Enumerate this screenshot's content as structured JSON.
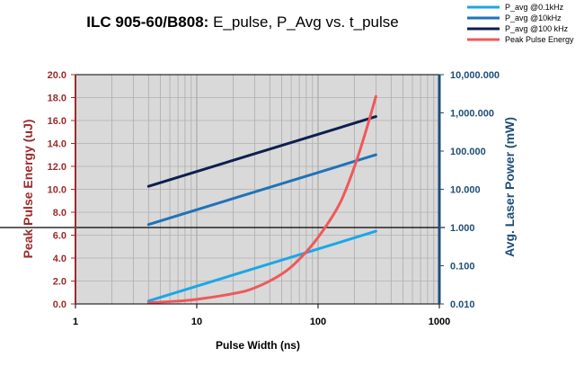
{
  "chart_data": {
    "type": "line",
    "title_bold": "ILC 905-60/B808:",
    "title_rest": " E_pulse, P_Avg vs. t_pulse",
    "xlabel": "Pulse Width (ns)",
    "ylabel_left": "Peak Pulse Energy (uJ)",
    "ylabel_right": "Avg. Laser Power (mW)",
    "x_scale": "log",
    "xlim": [
      1,
      1000
    ],
    "x_ticks": [
      "1",
      "10",
      "100",
      "1000"
    ],
    "ylim_left": [
      0,
      20
    ],
    "y_ticks_left": [
      "0.0",
      "2.0",
      "4.0",
      "6.0",
      "8.0",
      "10.0",
      "12.0",
      "14.0",
      "16.0",
      "18.0",
      "20.0"
    ],
    "y_scale_right": "log",
    "ylim_right": [
      0.01,
      10000
    ],
    "y_ticks_right": [
      "0.010",
      "0.100",
      "1.000",
      "10.000",
      "100.000",
      "1,000.000",
      "10,000.000"
    ],
    "grid": true,
    "legend_position": "top-right",
    "colors": {
      "left_axis": "#9b2b2b",
      "right_axis": "#1f4e79",
      "plot_bg": "#d9d9d9"
    },
    "series": [
      {
        "name": "P_avg @0.1kHz",
        "axis": "right",
        "color": "#1aa7e6",
        "x": [
          4,
          300
        ],
        "y": [
          0.012,
          0.8
        ]
      },
      {
        "name": "P_avg @10kHz",
        "axis": "right",
        "color": "#1f72b8",
        "x": [
          4,
          300
        ],
        "y": [
          1.2,
          80
        ]
      },
      {
        "name": "P_avg @100 kHz",
        "axis": "right",
        "color": "#0d1f4f",
        "x": [
          4,
          300
        ],
        "y": [
          12,
          800
        ]
      },
      {
        "name": "Peak Pulse Energy",
        "axis": "left",
        "color": "#f0585a",
        "x": [
          4,
          7,
          10,
          20,
          30,
          50,
          70,
          100,
          150,
          200,
          250,
          300
        ],
        "y": [
          0.1,
          0.25,
          0.4,
          0.9,
          1.4,
          2.6,
          3.9,
          5.8,
          8.7,
          12.0,
          15.2,
          18.1
        ]
      }
    ]
  }
}
